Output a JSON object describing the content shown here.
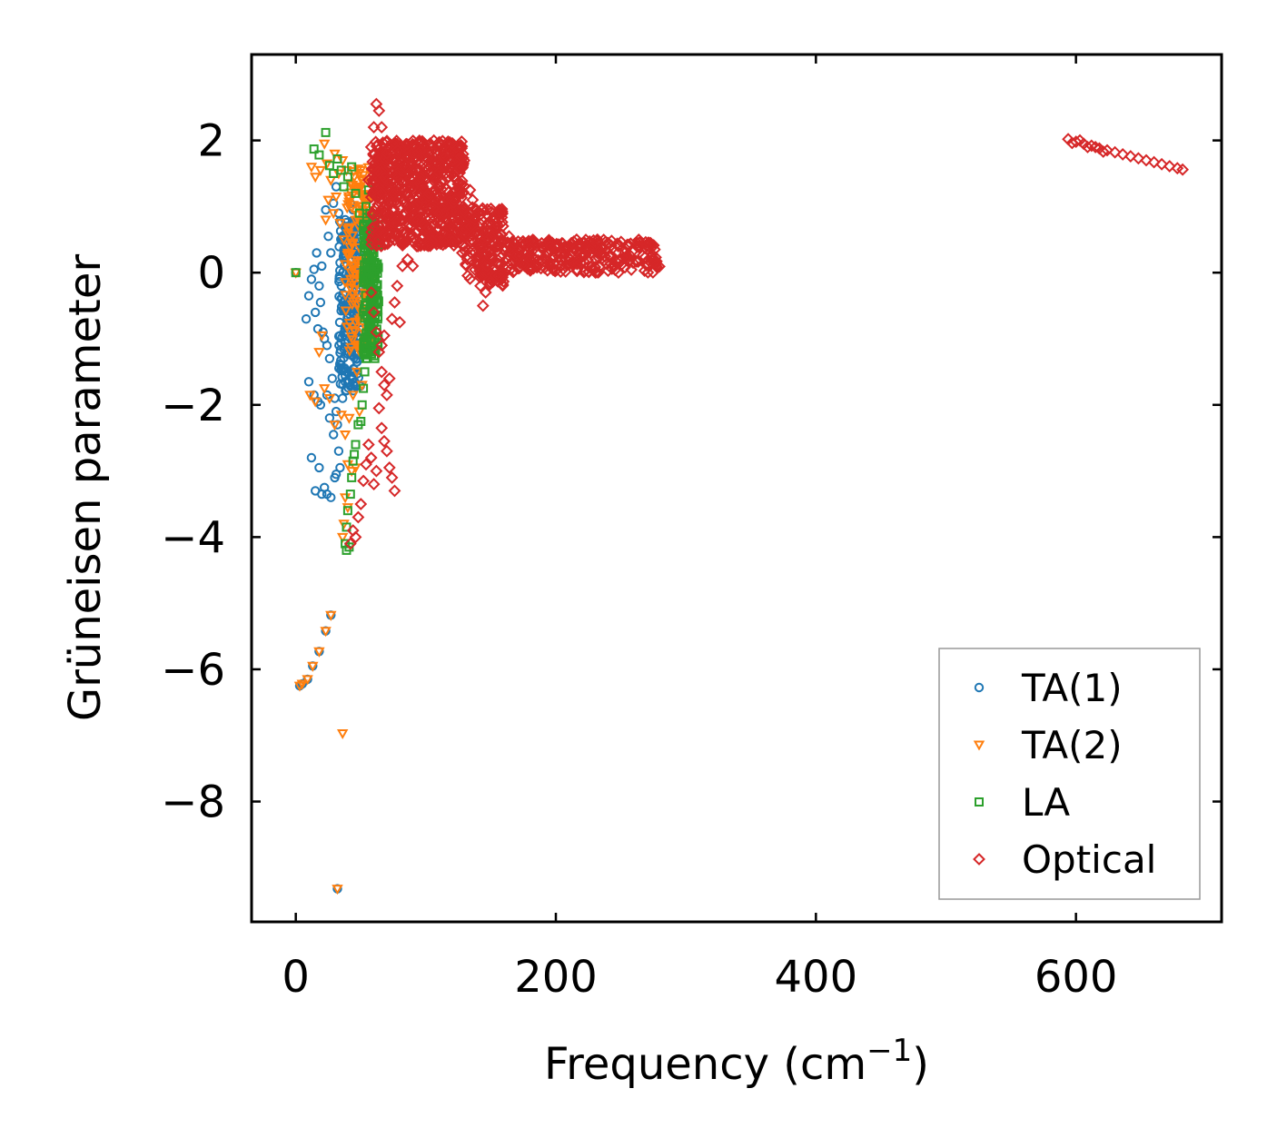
{
  "chart_data": {
    "type": "scatter",
    "xlabel": "Frequency (cm",
    "xlabel_sup": "−1",
    "xlabel_end": ")",
    "ylabel": "Grüneisen parameter",
    "xlim": [
      -34,
      712
    ],
    "ylim": [
      -9.82,
      3.3
    ],
    "xticks": [
      0,
      200,
      400,
      600
    ],
    "xtick_labels": [
      "0",
      "200",
      "400",
      "600"
    ],
    "yticks": [
      2,
      0,
      -2,
      -4,
      -6,
      -8
    ],
    "ytick_labels": [
      "2",
      "0",
      "−2",
      "−4",
      "−6",
      "−8"
    ],
    "legend_position": "lower-right",
    "series": [
      {
        "name": "TA(1)",
        "marker": "circle",
        "color": "#1f77b4",
        "points": [
          [
            0,
            0
          ],
          [
            3,
            -6.25
          ],
          [
            5,
            -6.22
          ],
          [
            9,
            -6.15
          ],
          [
            13,
            -5.95
          ],
          [
            18,
            -5.73
          ],
          [
            23,
            -5.42
          ],
          [
            27,
            -5.18
          ],
          [
            32,
            -9.32
          ],
          [
            8,
            -0.7
          ],
          [
            10,
            -0.35
          ],
          [
            12,
            -0.1
          ],
          [
            14,
            0.05
          ],
          [
            15,
            -0.6
          ],
          [
            17,
            -0.85
          ],
          [
            16,
            0.3
          ],
          [
            18,
            -0.2
          ],
          [
            20,
            0.1
          ],
          [
            19,
            -0.45
          ],
          [
            21,
            -0.9
          ],
          [
            22,
            -1.0
          ],
          [
            23,
            0.95
          ],
          [
            25,
            0.55
          ],
          [
            27,
            0.3
          ],
          [
            29,
            1.05
          ],
          [
            31,
            1.3
          ],
          [
            33,
            0.9
          ],
          [
            24,
            -1.1
          ],
          [
            26,
            -1.3
          ],
          [
            28,
            -1.6
          ],
          [
            30,
            -1.9
          ],
          [
            31,
            -2.1
          ],
          [
            32,
            -2.3
          ],
          [
            29,
            -2.45
          ],
          [
            33,
            -2.7
          ],
          [
            12,
            -2.8
          ],
          [
            18,
            -2.95
          ],
          [
            22,
            -3.25
          ],
          [
            24,
            -3.35
          ],
          [
            27,
            -3.4
          ],
          [
            30,
            -3.1
          ],
          [
            34,
            -2.95
          ],
          [
            31,
            -3.05
          ],
          [
            15,
            -3.3
          ],
          [
            20,
            -3.35
          ],
          [
            10,
            -1.65
          ],
          [
            14,
            -1.85
          ],
          [
            17,
            -1.95
          ],
          [
            19,
            -2.0
          ],
          [
            24,
            -1.85
          ],
          [
            26,
            -2.2
          ],
          [
            36,
            0.55
          ],
          [
            38,
            0.8
          ],
          [
            40,
            0.65
          ],
          [
            42,
            1.05
          ],
          [
            44,
            0.95
          ],
          [
            46,
            0.6
          ],
          [
            35,
            -0.2
          ],
          [
            37,
            -0.5
          ],
          [
            39,
            -0.8
          ],
          [
            41,
            -1.2
          ],
          [
            43,
            -1.5
          ],
          [
            45,
            -1.7
          ],
          [
            47,
            -1.35
          ],
          [
            36,
            -1.9
          ],
          [
            38,
            -1.65
          ],
          [
            40,
            -0.1
          ],
          [
            42,
            0.2
          ],
          [
            44,
            -0.35
          ],
          [
            46,
            -0.7
          ],
          [
            48,
            -1.0
          ],
          [
            34,
            0.15
          ],
          [
            37,
            0.35
          ]
        ]
      },
      {
        "name": "TA(2)",
        "marker": "triangle-down",
        "color": "#ff7f0e",
        "points": [
          [
            0,
            0
          ],
          [
            3,
            -6.25
          ],
          [
            5,
            -6.22
          ],
          [
            9,
            -6.15
          ],
          [
            13,
            -5.95
          ],
          [
            18,
            -5.73
          ],
          [
            23,
            -5.42
          ],
          [
            27,
            -5.18
          ],
          [
            32,
            -9.32
          ],
          [
            36,
            -6.97
          ],
          [
            12,
            1.6
          ],
          [
            15,
            1.45
          ],
          [
            19,
            1.55
          ],
          [
            22,
            1.95
          ],
          [
            24,
            1.65
          ],
          [
            27,
            1.4
          ],
          [
            30,
            1.8
          ],
          [
            33,
            1.5
          ],
          [
            36,
            1.7
          ],
          [
            39,
            1.55
          ],
          [
            42,
            1.35
          ],
          [
            45,
            1.45
          ],
          [
            48,
            1.25
          ],
          [
            50,
            1.55
          ],
          [
            23,
            0.8
          ],
          [
            25,
            1.1
          ],
          [
            29,
            0.9
          ],
          [
            31,
            1.15
          ],
          [
            34,
            0.75
          ],
          [
            37,
            0.5
          ],
          [
            40,
            0.3
          ],
          [
            43,
            0.1
          ],
          [
            18,
            -1.2
          ],
          [
            20,
            -0.95
          ],
          [
            11,
            -1.85
          ],
          [
            15,
            -1.95
          ],
          [
            22,
            -1.75
          ],
          [
            26,
            -1.9
          ],
          [
            30,
            -2.3
          ],
          [
            35,
            -2.15
          ],
          [
            38,
            -2.45
          ],
          [
            41,
            -2.2
          ],
          [
            44,
            -1.85
          ],
          [
            47,
            -1.5
          ],
          [
            50,
            -1.1
          ],
          [
            40,
            -2.9
          ],
          [
            43,
            -3.0
          ],
          [
            46,
            -2.95
          ],
          [
            38,
            -3.4
          ],
          [
            40,
            -3.55
          ],
          [
            37,
            -3.8
          ],
          [
            36,
            -4.0
          ],
          [
            52,
            -0.6
          ],
          [
            54,
            -0.2
          ],
          [
            55,
            0.4
          ],
          [
            53,
            0.9
          ],
          [
            51,
            -1.7
          ],
          [
            49,
            -2.1
          ]
        ]
      },
      {
        "name": "LA",
        "marker": "square",
        "color": "#2ca02c",
        "points": [
          [
            0,
            0
          ],
          [
            14,
            1.87
          ],
          [
            18,
            1.78
          ],
          [
            23,
            2.12
          ],
          [
            26,
            1.62
          ],
          [
            29,
            1.5
          ],
          [
            32,
            1.72
          ],
          [
            35,
            1.55
          ],
          [
            37,
            1.3
          ],
          [
            40,
            1.45
          ],
          [
            43,
            1.6
          ],
          [
            46,
            1.2
          ],
          [
            49,
            0.9
          ],
          [
            52,
            0.7
          ],
          [
            55,
            0.5
          ],
          [
            56,
            0.2
          ],
          [
            57,
            -0.1
          ],
          [
            58,
            -0.4
          ],
          [
            59,
            0.6
          ],
          [
            60,
            0.3
          ],
          [
            61,
            0.75
          ],
          [
            62,
            0.05
          ],
          [
            56,
            -0.8
          ],
          [
            55,
            -1.1
          ],
          [
            54,
            -1.3
          ],
          [
            53,
            -1.5
          ],
          [
            52,
            -1.75
          ],
          [
            51,
            -2.0
          ],
          [
            50,
            -2.25
          ],
          [
            48,
            -2.3
          ],
          [
            46,
            -2.6
          ],
          [
            45,
            -2.75
          ],
          [
            44,
            -2.85
          ],
          [
            43,
            -3.1
          ],
          [
            42,
            -3.35
          ],
          [
            40,
            -3.6
          ],
          [
            39,
            -3.85
          ],
          [
            38,
            -4.1
          ],
          [
            39,
            -4.2
          ],
          [
            41,
            -4.15
          ],
          [
            57,
            0.9
          ],
          [
            58,
            0.45
          ],
          [
            60,
            -0.55
          ],
          [
            59,
            -0.25
          ],
          [
            61,
            -0.05
          ],
          [
            54,
            1.0
          ],
          [
            56,
            1.25
          ]
        ]
      },
      {
        "name": "Optical",
        "marker": "diamond",
        "color": "#d62728",
        "points": [
          [
            56,
            1.4
          ],
          [
            58,
            1.9
          ],
          [
            60,
            2.2
          ],
          [
            62,
            2.55
          ],
          [
            64,
            2.45
          ],
          [
            66,
            2.2
          ],
          [
            68,
            1.95
          ],
          [
            70,
            1.8
          ],
          [
            72,
            1.6
          ],
          [
            74,
            1.5
          ],
          [
            76,
            1.7
          ],
          [
            78,
            1.85
          ],
          [
            80,
            1.55
          ],
          [
            82,
            1.35
          ],
          [
            84,
            1.6
          ],
          [
            86,
            1.75
          ],
          [
            88,
            1.5
          ],
          [
            90,
            1.3
          ],
          [
            92,
            1.55
          ],
          [
            94,
            1.7
          ],
          [
            96,
            1.85
          ],
          [
            98,
            1.95
          ],
          [
            100,
            1.6
          ],
          [
            102,
            1.2
          ],
          [
            104,
            1.0
          ],
          [
            106,
            0.85
          ],
          [
            110,
            0.9
          ],
          [
            116,
            0.8
          ],
          [
            120,
            0.82
          ],
          [
            124,
            0.6
          ],
          [
            128,
            0.3
          ],
          [
            132,
            0.2
          ],
          [
            134,
            1.25
          ],
          [
            136,
            1.1
          ],
          [
            138,
            0.8
          ],
          [
            140,
            0.4
          ],
          [
            142,
            -0.2
          ],
          [
            144,
            -0.5
          ],
          [
            146,
            -0.3
          ],
          [
            148,
            0.5
          ],
          [
            150,
            0.55
          ],
          [
            152,
            0.2
          ],
          [
            156,
            -0.05
          ],
          [
            160,
            0.35
          ],
          [
            164,
            0.55
          ],
          [
            168,
            0.45
          ],
          [
            172,
            0.25
          ],
          [
            176,
            0.1
          ],
          [
            180,
            0.05
          ],
          [
            184,
            0.2
          ],
          [
            190,
            0.35
          ],
          [
            196,
            0.4
          ],
          [
            200,
            0.3
          ],
          [
            204,
            0.1
          ],
          [
            208,
            0.2
          ],
          [
            212,
            0.45
          ],
          [
            216,
            0.5
          ],
          [
            220,
            0.4
          ],
          [
            226,
            0.35
          ],
          [
            232,
            0.5
          ],
          [
            240,
            0.45
          ],
          [
            248,
            0.4
          ],
          [
            256,
            0.42
          ],
          [
            264,
            0.38
          ],
          [
            270,
            0.4
          ],
          [
            276,
            0.35
          ],
          [
            58,
            -0.3
          ],
          [
            60,
            -0.6
          ],
          [
            62,
            -0.9
          ],
          [
            64,
            -1.2
          ],
          [
            66,
            -1.5
          ],
          [
            68,
            -1.7
          ],
          [
            70,
            -1.85
          ],
          [
            72,
            -1.6
          ],
          [
            74,
            -0.7
          ],
          [
            76,
            -0.45
          ],
          [
            78,
            -0.2
          ],
          [
            80,
            -0.75
          ],
          [
            82,
            0.1
          ],
          [
            86,
            0.2
          ],
          [
            64,
            -2.05
          ],
          [
            66,
            -2.35
          ],
          [
            68,
            -2.55
          ],
          [
            70,
            -2.7
          ],
          [
            72,
            -2.95
          ],
          [
            74,
            -3.1
          ],
          [
            76,
            -3.3
          ],
          [
            60,
            -3.2
          ],
          [
            62,
            -3.0
          ],
          [
            58,
            -2.8
          ],
          [
            56,
            -2.6
          ],
          [
            54,
            -2.9
          ],
          [
            52,
            -3.15
          ],
          [
            50,
            -3.5
          ],
          [
            48,
            -3.7
          ],
          [
            46,
            -4.0
          ],
          [
            44,
            -3.9
          ],
          [
            42,
            -4.1
          ],
          [
            66,
            -1.1
          ],
          [
            68,
            -0.95
          ],
          [
            84,
            0.45
          ],
          [
            90,
            0.1
          ],
          [
            94,
            0.4
          ],
          [
            98,
            0.75
          ],
          [
            112,
            0.72
          ],
          [
            118,
            0.7
          ],
          [
            594,
            2.02
          ],
          [
            600,
            1.98
          ],
          [
            606,
            1.95
          ],
          [
            612,
            1.92
          ],
          [
            618,
            1.88
          ],
          [
            624,
            1.85
          ],
          [
            630,
            1.82
          ],
          [
            636,
            1.79
          ],
          [
            642,
            1.76
          ],
          [
            648,
            1.73
          ],
          [
            654,
            1.7
          ],
          [
            660,
            1.67
          ],
          [
            666,
            1.64
          ],
          [
            672,
            1.61
          ],
          [
            678,
            1.58
          ],
          [
            682,
            1.56
          ],
          [
            597,
            1.96
          ],
          [
            603,
            2.0
          ],
          [
            609,
            1.9
          ],
          [
            615,
            1.9
          ],
          [
            621,
            1.83
          ]
        ]
      }
    ],
    "clouds": [
      {
        "series": "TA(1)",
        "x": [
          33,
          50
        ],
        "y": [
          -1.8,
          0.8
        ],
        "n": 220
      },
      {
        "series": "TA(2)",
        "x": [
          38,
          58
        ],
        "y": [
          -1.2,
          1.6
        ],
        "n": 150
      },
      {
        "series": "LA",
        "x": [
          52,
          64
        ],
        "y": [
          -1.3,
          0.9
        ],
        "n": 160
      },
      {
        "series": "Optical",
        "x": [
          58,
          130
        ],
        "y": [
          0.4,
          2.0
        ],
        "n": 700
      },
      {
        "series": "Optical",
        "x": [
          130,
          160
        ],
        "y": [
          -0.2,
          1.0
        ],
        "n": 180
      },
      {
        "series": "Optical",
        "x": [
          160,
          280
        ],
        "y": [
          0.0,
          0.5
        ],
        "n": 260
      }
    ]
  }
}
